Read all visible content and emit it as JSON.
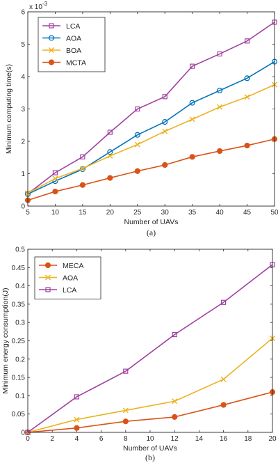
{
  "chart_data": [
    {
      "type": "line",
      "caption": "(a)",
      "xlabel": "Number of UAVs",
      "ylabel": "Minimum computing time(s)",
      "exponent_label": "x 10",
      "exponent_power": "-3",
      "x": [
        5,
        10,
        15,
        20,
        25,
        30,
        35,
        40,
        45,
        50
      ],
      "xlim": [
        5,
        50
      ],
      "ylim": [
        0,
        6
      ],
      "x_ticks": [
        "5",
        "10",
        "15",
        "20",
        "25",
        "30",
        "35",
        "40",
        "45",
        "50"
      ],
      "y_ticks": [
        "0",
        "1",
        "2",
        "3",
        "4",
        "5",
        "6"
      ],
      "y_scale_factor": 0.001,
      "grid": false,
      "legend_position": "top-left",
      "series": [
        {
          "name": "LCA",
          "color": "#a040a0",
          "marker": "square",
          "values": [
            0.38,
            1.03,
            1.52,
            2.28,
            3.0,
            3.38,
            4.32,
            4.7,
            5.1,
            5.68
          ]
        },
        {
          "name": "AOA",
          "color": "#0072bd",
          "marker": "circle",
          "values": [
            0.37,
            0.77,
            1.14,
            1.67,
            2.2,
            2.6,
            3.19,
            3.57,
            3.95,
            4.46
          ]
        },
        {
          "name": "BOA",
          "color": "#edb120",
          "marker": "x",
          "values": [
            0.4,
            0.85,
            1.16,
            1.55,
            1.9,
            2.31,
            2.68,
            3.06,
            3.37,
            3.75
          ]
        },
        {
          "name": "MCTA",
          "color": "#d95319",
          "marker": "dot",
          "values": [
            0.18,
            0.45,
            0.65,
            0.87,
            1.08,
            1.27,
            1.52,
            1.7,
            1.87,
            2.07
          ]
        }
      ]
    },
    {
      "type": "line",
      "caption": "(b)",
      "xlabel": "Number of UAVs",
      "ylabel": "Minimum energy consumption(J)",
      "x": [
        0,
        4,
        8,
        12,
        16,
        20
      ],
      "xlim": [
        0,
        20
      ],
      "ylim": [
        0,
        0.5
      ],
      "x_ticks": [
        "0",
        "2",
        "4",
        "6",
        "8",
        "10",
        "12",
        "14",
        "16",
        "18",
        "20"
      ],
      "y_ticks": [
        "0",
        "0.05",
        "0.1",
        "0.15",
        "0.2",
        "0.25",
        "0.3",
        "0.35",
        "0.4",
        "0.45",
        "0.5"
      ],
      "grid": false,
      "legend_position": "top-left",
      "series": [
        {
          "name": "MECA",
          "color": "#d95319",
          "marker": "dot",
          "values": [
            0.0,
            0.012,
            0.03,
            0.042,
            0.075,
            0.11
          ]
        },
        {
          "name": "AOA",
          "color": "#edb120",
          "marker": "x",
          "values": [
            0.0,
            0.035,
            0.06,
            0.085,
            0.145,
            0.257
          ]
        },
        {
          "name": "LCA",
          "color": "#a040a0",
          "marker": "square",
          "values": [
            0.0,
            0.097,
            0.167,
            0.267,
            0.355,
            0.458
          ]
        }
      ]
    }
  ]
}
